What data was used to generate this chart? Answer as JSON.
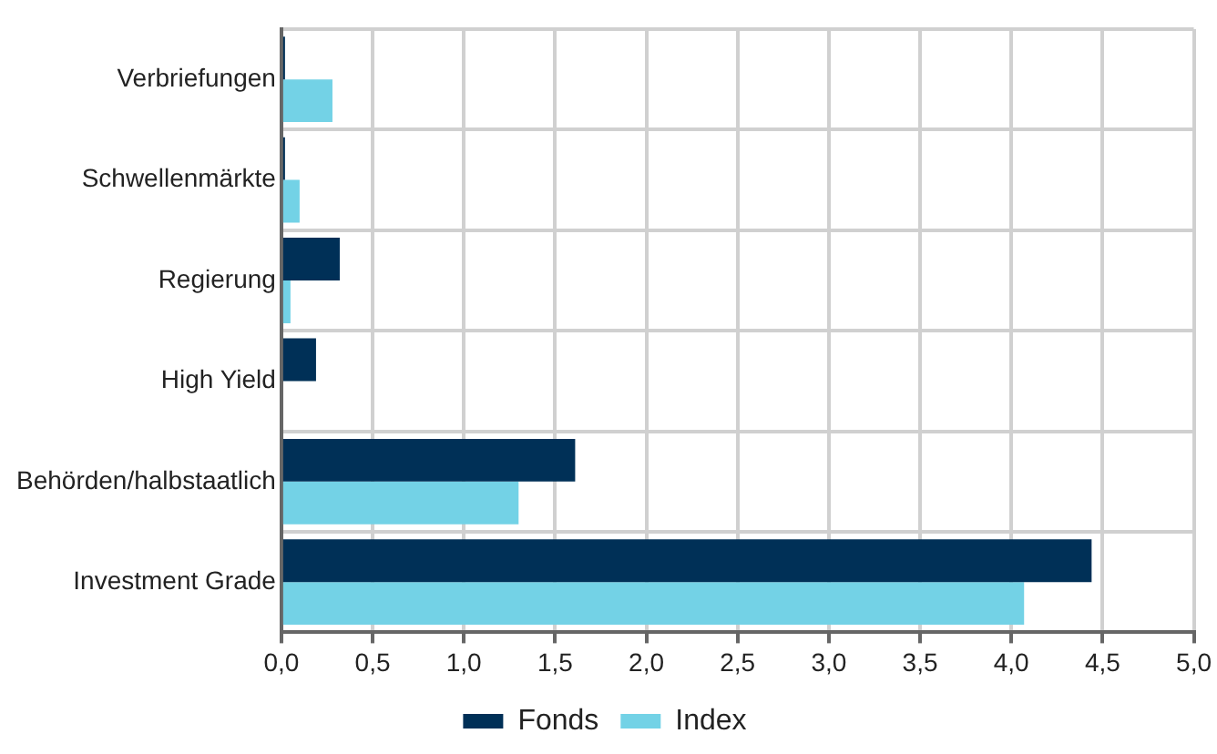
{
  "chart_data": {
    "type": "bar",
    "orientation": "horizontal",
    "categories": [
      "Verbriefungen",
      "Schwellenmärkte",
      "Regierung",
      "High Yield",
      "Behörden/halbstaatlich",
      "Investment Grade"
    ],
    "series": [
      {
        "name": "Fonds",
        "color": "#003057",
        "values": [
          0.02,
          0.02,
          0.32,
          0.19,
          1.61,
          4.44
        ]
      },
      {
        "name": "Index",
        "color": "#73d2e6",
        "values": [
          0.28,
          0.1,
          0.05,
          0,
          1.3,
          4.07
        ]
      }
    ],
    "xlim": [
      0,
      5
    ],
    "xticks": [
      {
        "value": 0,
        "label": "0,0"
      },
      {
        "value": 0.5,
        "label": "0,5"
      },
      {
        "value": 1,
        "label": "1,0"
      },
      {
        "value": 1.5,
        "label": "1,5"
      },
      {
        "value": 2,
        "label": "2,0"
      },
      {
        "value": 2.5,
        "label": "2,5"
      },
      {
        "value": 3,
        "label": "3,0"
      },
      {
        "value": 3.5,
        "label": "3,5"
      },
      {
        "value": 4,
        "label": "4,0"
      },
      {
        "value": 4.5,
        "label": "4,5"
      },
      {
        "value": 5,
        "label": "5,0"
      }
    ],
    "grid": true,
    "legend": "bottom"
  }
}
